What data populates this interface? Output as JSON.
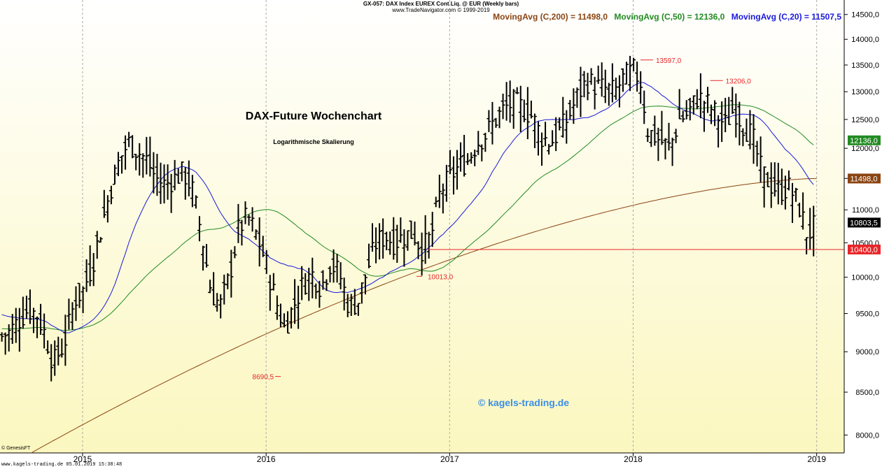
{
  "header": {
    "line1": "GX-057:  DAX Index EUREX Cont Liq. @ EUR  (Weekly bars)",
    "line2": "www.TradeNavigator.com © 1999-2019"
  },
  "moving_averages": [
    {
      "label": "MovingAvg (C,200) = 11498,0",
      "color": "#8b4513"
    },
    {
      "label": "MovingAvg (C,50) = 12136,0",
      "color": "#228b22"
    },
    {
      "label": "MovingAvg (C,20) = 11507,5",
      "color": "#1a1adb"
    }
  ],
  "footer": {
    "genesis": "© GenesisFT",
    "watermark": "www.kagels-trading.de   05.01.2019 15:38:48"
  },
  "chart_data": {
    "type": "ohlc-bar",
    "title": "DAX-Future Wochenchart",
    "subtitle": "Logarithmische Skalierung",
    "copyright": "© kagels-trading.de",
    "y_scale": "log",
    "ylim": [
      7800,
      14800
    ],
    "xlim": [
      2014.55,
      2019.15
    ],
    "y_ticks": [
      "8000,0",
      "8500,0",
      "9000,0",
      "9500,0",
      "10000,0",
      "10500,0",
      "11000,0",
      "11500,0",
      "12000,0",
      "12500,0",
      "13000,0",
      "13500,0",
      "14000,0",
      "14500,0"
    ],
    "y_tick_values": [
      8000,
      8500,
      9000,
      9500,
      10000,
      10500,
      11000,
      11500,
      12000,
      12500,
      13000,
      13500,
      14000,
      14500
    ],
    "x_ticks": [
      "2015",
      "2016",
      "2017",
      "2018",
      "2019"
    ],
    "x_tick_values": [
      2015,
      2016,
      2017,
      2018,
      2019
    ],
    "colors": {
      "background_top": "#ffffff",
      "background_bottom": "#fbf7bf",
      "bars": "#000000",
      "annotation": "#e8262a",
      "ma200": "#8b4513",
      "ma50": "#228b22",
      "ma20": "#1a1adb"
    },
    "annotations": [
      {
        "text": "13597,0",
        "value": 13597.0,
        "x": 2018.04
      },
      {
        "text": "13206,0",
        "value": 13206.0,
        "x": 2018.42
      },
      {
        "text": "10013,0",
        "value": 10013.0,
        "x": 2016.85
      },
      {
        "text": "8690,5",
        "value": 8690.5,
        "x": 2016.08
      }
    ],
    "support_line": {
      "value": 10400.0,
      "from_x": 2016.88
    },
    "price_tags": [
      {
        "text": "12136,0",
        "value": 12136.0,
        "color": "#228b22"
      },
      {
        "text": "11498,0",
        "value": 11498.0,
        "color": "#8b4513"
      },
      {
        "text": "10803,5",
        "value": 10803.5,
        "color": "#000000"
      },
      {
        "text": "10400,0",
        "value": 10400.0,
        "color": "#e8262a"
      }
    ],
    "close_path": [
      [
        2014.56,
        9200
      ],
      [
        2014.6,
        9250
      ],
      [
        2014.65,
        9400
      ],
      [
        2014.7,
        9550
      ],
      [
        2014.75,
        9500
      ],
      [
        2014.8,
        9200
      ],
      [
        2014.84,
        8850
      ],
      [
        2014.9,
        9100
      ],
      [
        2014.96,
        9700
      ],
      [
        2015.0,
        9800
      ],
      [
        2015.05,
        10150
      ],
      [
        2015.1,
        10700
      ],
      [
        2015.15,
        11300
      ],
      [
        2015.2,
        11800
      ],
      [
        2015.25,
        12100
      ],
      [
        2015.3,
        11950
      ],
      [
        2015.35,
        11800
      ],
      [
        2015.4,
        11500
      ],
      [
        2015.45,
        11400
      ],
      [
        2015.5,
        11500
      ],
      [
        2015.55,
        11600
      ],
      [
        2015.6,
        11300
      ],
      [
        2015.65,
        10600
      ],
      [
        2015.7,
        9800
      ],
      [
        2015.75,
        9600
      ],
      [
        2015.8,
        10000
      ],
      [
        2015.85,
        10700
      ],
      [
        2015.9,
        10900
      ],
      [
        2015.95,
        10600
      ],
      [
        2016.0,
        10200
      ],
      [
        2016.05,
        9700
      ],
      [
        2016.1,
        9300
      ],
      [
        2016.15,
        9600
      ],
      [
        2016.2,
        9900
      ],
      [
        2016.25,
        10050
      ],
      [
        2016.3,
        9850
      ],
      [
        2016.35,
        10200
      ],
      [
        2016.4,
        10050
      ],
      [
        2016.45,
        9600
      ],
      [
        2016.5,
        9650
      ],
      [
        2016.55,
        10100
      ],
      [
        2016.6,
        10500
      ],
      [
        2016.65,
        10600
      ],
      [
        2016.7,
        10500
      ],
      [
        2016.75,
        10600
      ],
      [
        2016.8,
        10650
      ],
      [
        2016.85,
        10400
      ],
      [
        2016.9,
        10600
      ],
      [
        2016.95,
        11300
      ],
      [
        2017.0,
        11500
      ],
      [
        2017.05,
        11700
      ],
      [
        2017.1,
        11800
      ],
      [
        2017.15,
        12100
      ],
      [
        2017.2,
        12250
      ],
      [
        2017.25,
        12500
      ],
      [
        2017.3,
        12700
      ],
      [
        2017.35,
        12800
      ],
      [
        2017.4,
        12700
      ],
      [
        2017.45,
        12550
      ],
      [
        2017.5,
        12200
      ],
      [
        2017.55,
        12100
      ],
      [
        2017.6,
        12300
      ],
      [
        2017.65,
        12550
      ],
      [
        2017.7,
        12950
      ],
      [
        2017.75,
        13200
      ],
      [
        2017.8,
        13100
      ],
      [
        2017.85,
        13050
      ],
      [
        2017.9,
        13000
      ],
      [
        2017.95,
        13250
      ],
      [
        2018.0,
        13400
      ],
      [
        2018.04,
        13200
      ],
      [
        2018.08,
        12300
      ],
      [
        2018.12,
        12200
      ],
      [
        2018.16,
        12100
      ],
      [
        2018.2,
        12000
      ],
      [
        2018.25,
        12500
      ],
      [
        2018.3,
        12600
      ],
      [
        2018.35,
        12900
      ],
      [
        2018.4,
        12800
      ],
      [
        2018.45,
        12600
      ],
      [
        2018.5,
        12400
      ],
      [
        2018.55,
        12700
      ],
      [
        2018.6,
        12400
      ],
      [
        2018.65,
        12200
      ],
      [
        2018.7,
        11600
      ],
      [
        2018.75,
        11400
      ],
      [
        2018.8,
        11300
      ],
      [
        2018.85,
        11350
      ],
      [
        2018.9,
        11100
      ],
      [
        2018.95,
        10600
      ],
      [
        2019.0,
        10800
      ]
    ]
  }
}
